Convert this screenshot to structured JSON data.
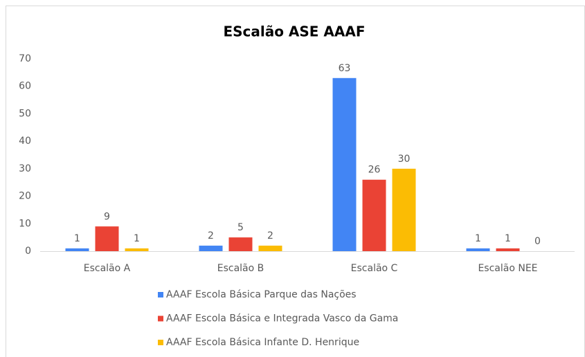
{
  "chart_data": {
    "type": "bar",
    "title": "EScalão ASE AAAF",
    "categories": [
      "Escalão A",
      "Escalão B",
      "Escalão C",
      "Escalão NEE"
    ],
    "series": [
      {
        "name": "AAAF Escola Básica Parque das Nações",
        "color": "#4285f4",
        "values": [
          1,
          2,
          63,
          1
        ]
      },
      {
        "name": "AAAF Escola Básica e Integrada Vasco da Gama",
        "color": "#ea4335",
        "values": [
          9,
          5,
          26,
          1
        ]
      },
      {
        "name": "AAAF Escola Básica Infante D. Henrique",
        "color": "#fbbc04",
        "values": [
          1,
          2,
          30,
          0
        ]
      }
    ],
    "ylim": [
      0,
      70
    ],
    "yticks": [
      0,
      10,
      20,
      30,
      40,
      50,
      60,
      70
    ],
    "grid": false,
    "legend": "bottom"
  }
}
